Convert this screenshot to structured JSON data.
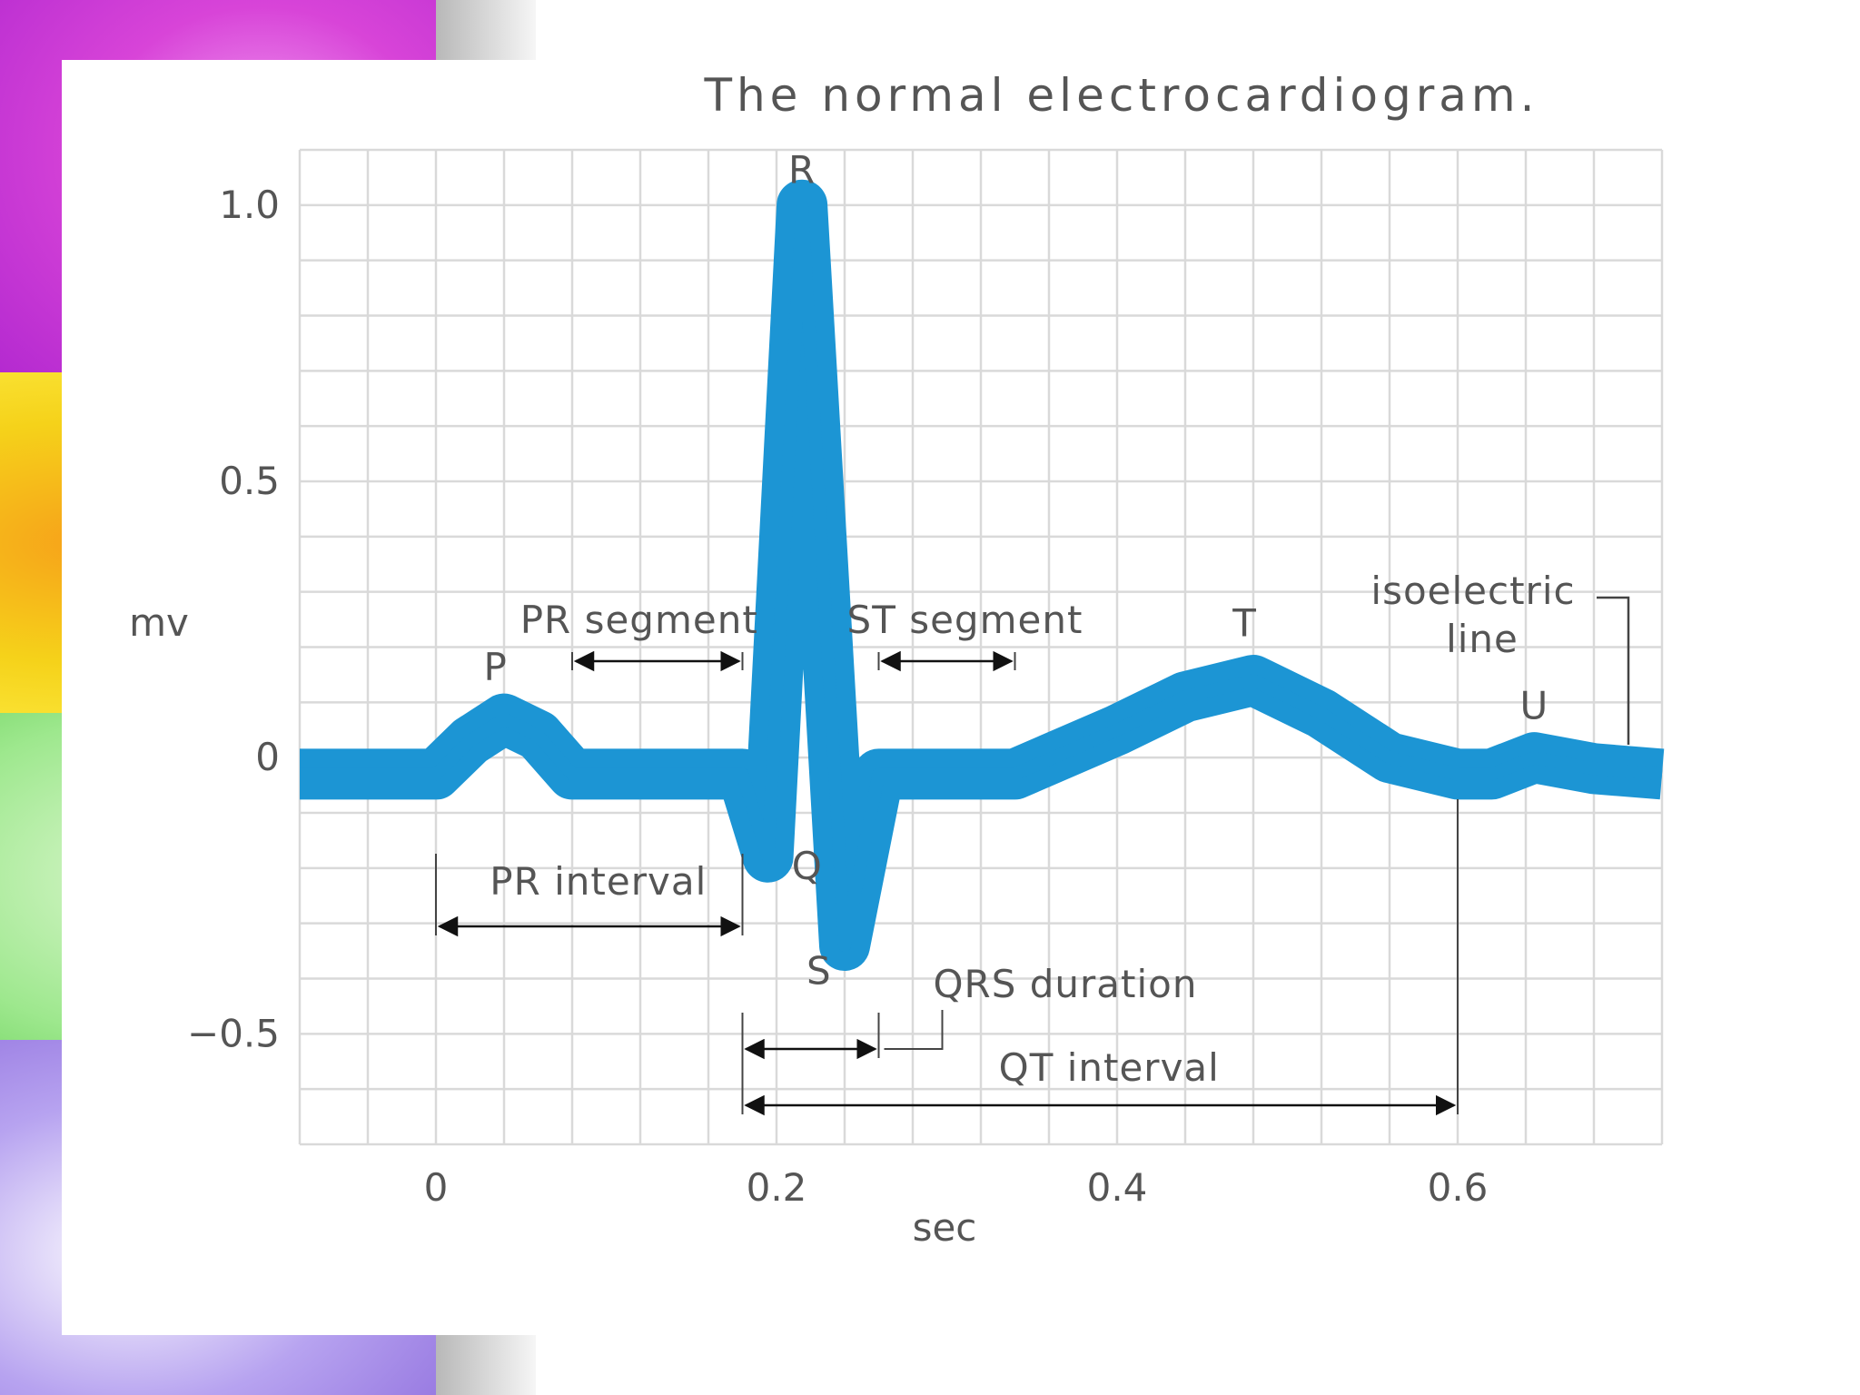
{
  "colors": {
    "trace": "#1c95d4",
    "grid": "#d9d9d9",
    "text": "#555555",
    "background_strip": [
      "#d844d8",
      "#f5d21a",
      "#9ee88e",
      "#b7a3f0"
    ]
  },
  "chart_data": {
    "type": "line",
    "title": "The normal electrocardiogram.",
    "xlabel": "sec",
    "ylabel": "mv",
    "xlim": [
      -0.08,
      0.72
    ],
    "ylim": [
      -0.7,
      1.1
    ],
    "x_ticks": [
      {
        "value": 0,
        "label": "0"
      },
      {
        "value": 0.2,
        "label": "0.2"
      },
      {
        "value": 0.4,
        "label": "0.4"
      },
      {
        "value": 0.6,
        "label": "0.6"
      }
    ],
    "y_ticks": [
      {
        "value": 1.0,
        "label": "1.0"
      },
      {
        "value": 0.5,
        "label": "0.5"
      },
      {
        "value": 0,
        "label": "0"
      },
      {
        "value": -0.5,
        "label": "−0.5"
      }
    ],
    "grid": true,
    "grid_major_x": 0.04,
    "grid_major_y": 0.1,
    "series": [
      {
        "x": [
          -0.08,
          0.0,
          0.02,
          0.04,
          0.06,
          0.08,
          0.18,
          0.195,
          0.215,
          0.24,
          0.26,
          0.34,
          0.4,
          0.44,
          0.48,
          0.52,
          0.56,
          0.6,
          0.62,
          0.645,
          0.68,
          0.72
        ],
        "y": [
          -0.03,
          -0.03,
          0.03,
          0.07,
          0.04,
          -0.03,
          -0.03,
          -0.18,
          1.0,
          -0.34,
          -0.03,
          -0.03,
          0.05,
          0.11,
          0.14,
          0.08,
          0.0,
          -0.03,
          -0.03,
          0.0,
          -0.02,
          -0.03
        ]
      }
    ],
    "annotations": {
      "waves": [
        {
          "label": "P",
          "x": 0.035,
          "y": 0.14
        },
        {
          "label": "R",
          "x": 0.215,
          "y": 1.04
        },
        {
          "label": "Q",
          "x": 0.218,
          "y": -0.22
        },
        {
          "label": "S",
          "x": 0.225,
          "y": -0.41
        },
        {
          "label": "T",
          "x": 0.475,
          "y": 0.22
        },
        {
          "label": "U",
          "x": 0.645,
          "y": 0.07
        }
      ],
      "intervals": [
        {
          "label": "PR segment",
          "x_start": 0.08,
          "x_end": 0.18
        },
        {
          "label": "ST segment",
          "x_start": 0.26,
          "x_end": 0.34
        },
        {
          "label": "PR interval",
          "x_start": 0.0,
          "x_end": 0.18
        },
        {
          "label": "QRS duration",
          "x_start": 0.18,
          "x_end": 0.26
        },
        {
          "label": "QT interval",
          "x_start": 0.18,
          "x_end": 0.6
        }
      ],
      "isoelectric_line": {
        "line1": "isoelectric",
        "line2": "line"
      }
    }
  }
}
